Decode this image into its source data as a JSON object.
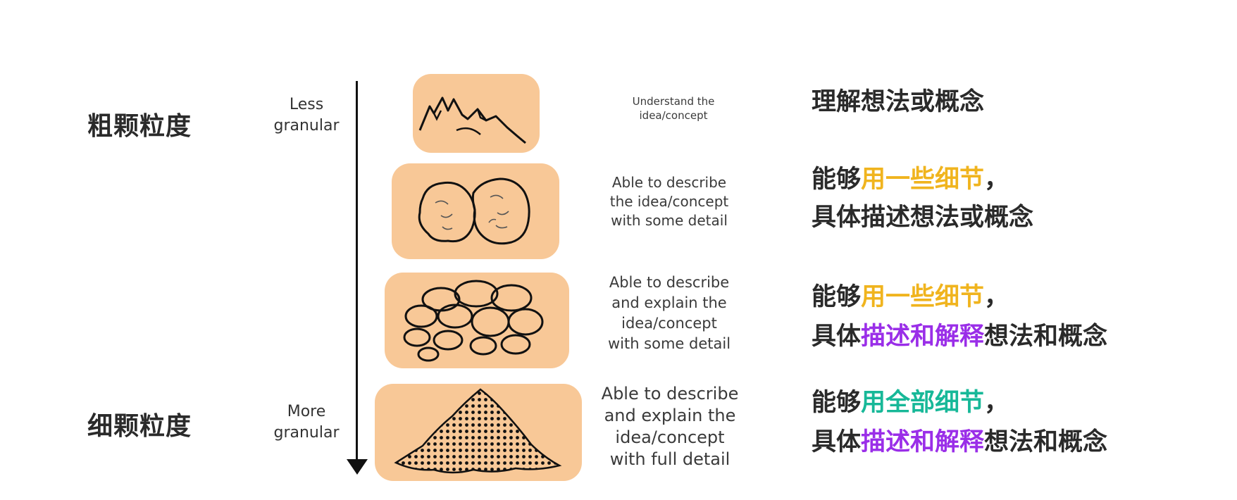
{
  "left_labels": {
    "coarse": "粗颗粒度",
    "fine": "细颗粒度"
  },
  "axis": {
    "top_label_line1": "Less",
    "top_label_line2": "granular",
    "bottom_label_line1": "More",
    "bottom_label_line2": "granular"
  },
  "levels": [
    {
      "picture": "mountain-icon",
      "en_lines": [
        "Understand the",
        "idea/concept"
      ],
      "zh_line1": [
        {
          "text": "理解想法或概念",
          "color": "#2a2a2a"
        }
      ],
      "zh_line2": []
    },
    {
      "picture": "two-rocks-icon",
      "en_lines": [
        "Able to describe",
        "the idea/concept",
        "with some detail"
      ],
      "zh_line1": [
        {
          "text": "能够",
          "color": "#2a2a2a"
        },
        {
          "text": "用一些细节",
          "color": "#f0b41e"
        },
        {
          "text": "，",
          "color": "#2a2a2a"
        }
      ],
      "zh_line2": [
        {
          "text": "具体描述想法或概念",
          "color": "#2a2a2a"
        }
      ]
    },
    {
      "picture": "pebbles-icon",
      "en_lines": [
        "Able to describe",
        "and explain the",
        "idea/concept",
        "with some detail"
      ],
      "zh_line1": [
        {
          "text": "能够",
          "color": "#2a2a2a"
        },
        {
          "text": "用一些细节",
          "color": "#f0b41e"
        },
        {
          "text": "，",
          "color": "#2a2a2a"
        }
      ],
      "zh_line2": [
        {
          "text": "具体",
          "color": "#2a2a2a"
        },
        {
          "text": "描述和解释",
          "color": "#9a2ee8"
        },
        {
          "text": "想法和概念",
          "color": "#2a2a2a"
        }
      ]
    },
    {
      "picture": "sand-pile-icon",
      "en_lines": [
        "Able to describe",
        "and explain the",
        "idea/concept",
        "with full detail"
      ],
      "zh_line1": [
        {
          "text": "能够",
          "color": "#2a2a2a"
        },
        {
          "text": "用全部细节",
          "color": "#17b898"
        },
        {
          "text": "，",
          "color": "#2a2a2a"
        }
      ],
      "zh_line2": [
        {
          "text": "具体",
          "color": "#2a2a2a"
        },
        {
          "text": "描述和解释",
          "color": "#9a2ee8"
        },
        {
          "text": "想法和概念",
          "color": "#2a2a2a"
        }
      ]
    }
  ],
  "colors": {
    "tile_fill": "#f8c897",
    "highlight_yellow": "#f0b41e",
    "highlight_purple": "#9a2ee8",
    "highlight_teal": "#17b898"
  }
}
